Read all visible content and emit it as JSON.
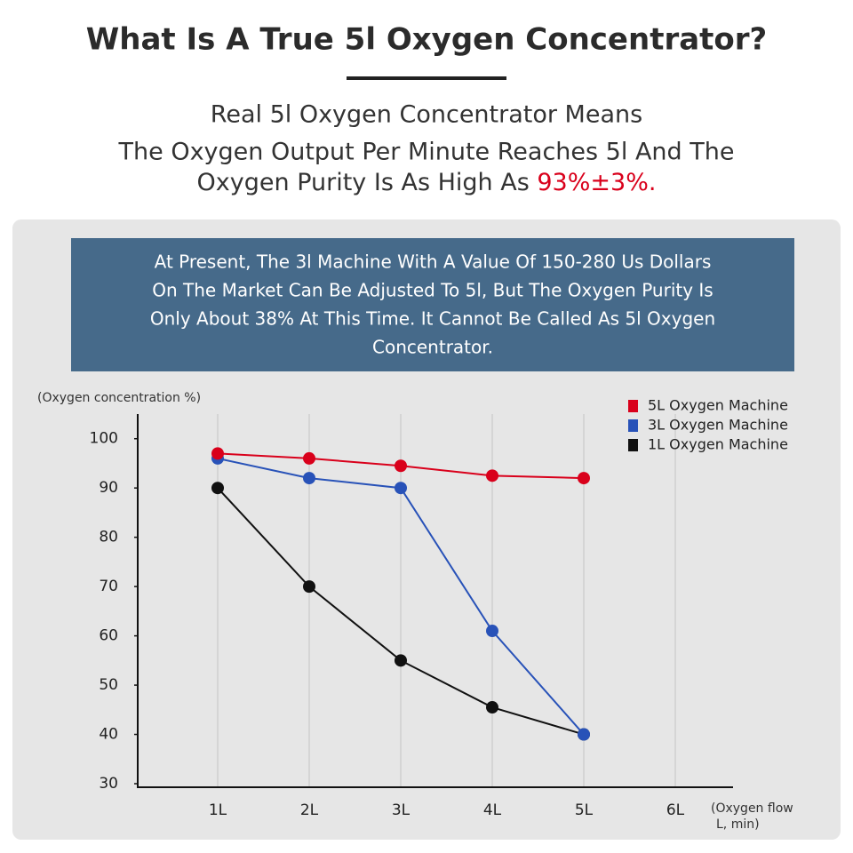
{
  "header": {
    "title": "What Is A True 5l Oxygen Concentrator?",
    "subtitle_lines": [
      "Real 5l Oxygen Concentrator Means",
      "The Oxygen Output Per Minute Reaches 5l And The"
    ],
    "subtitle_last": "Oxygen Purity Is As High As",
    "highlight": "93%±3%."
  },
  "notice": {
    "lines": [
      "At Present, The 3l Machine With A Value Of 150-280 Us Dollars",
      "On The Market Can Be Adjusted To 5l, But The Oxygen Purity Is",
      "Only About 38% At This Time. It Cannot Be Called As 5l Oxygen",
      "Concentrator."
    ]
  },
  "chart_data": {
    "type": "line",
    "y_label": "(Oxygen concentration %)",
    "x_label": [
      "(Oxygen flow",
      "L, min)"
    ],
    "categories": [
      "1L",
      "2L",
      "3L",
      "4L",
      "5L",
      "6L"
    ],
    "series": [
      {
        "name": "5L Oxygen Machine",
        "color": "#d9001b",
        "values": [
          97,
          96,
          94.5,
          92.5,
          92,
          null
        ]
      },
      {
        "name": "3L Oxygen Machine",
        "color": "#2852b8",
        "values": [
          96,
          92,
          90,
          61,
          40,
          null
        ]
      },
      {
        "name": "1L Oxygen Machine",
        "color": "#111111",
        "values": [
          90,
          70,
          55,
          45.5,
          40,
          null
        ]
      }
    ],
    "ylim": [
      30,
      105
    ],
    "yticks": [
      30,
      40,
      50,
      60,
      70,
      80,
      90,
      100
    ],
    "grid": true,
    "legend": "top-right"
  }
}
